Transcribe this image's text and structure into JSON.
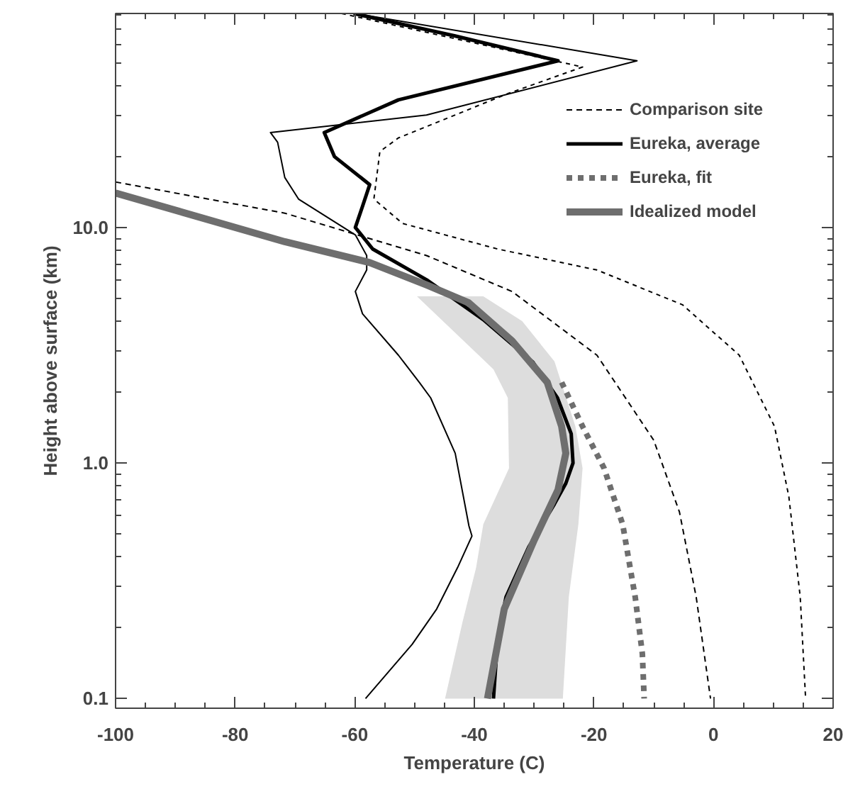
{
  "chart_data": {
    "type": "line",
    "xlabel": "Temperature (C)",
    "ylabel": "Height above surface (km)",
    "log": "y",
    "xlim": [
      -100,
      20
    ],
    "xticks": [
      -100,
      -80,
      -60,
      -40,
      -20,
      0,
      20
    ],
    "ylim": [
      0.091,
      81
    ],
    "yticks": [
      {
        "value": 0.1,
        "label": "0.1"
      },
      {
        "value": 1,
        "label": "1.0"
      },
      {
        "value": 10,
        "label": "10.0"
      }
    ],
    "grid": false,
    "legend": "top right",
    "series": [
      {
        "type": "area",
        "color": "#dddddd",
        "x": [
          -49.6,
          -38.5,
          -32,
          -26.6,
          -23.1,
          -21.9,
          -22.6,
          -24.2,
          -25.2,
          -44.9,
          -42.0,
          -39.7,
          -38.5,
          -34.2,
          -34.4,
          -36.8,
          -49.6
        ],
        "values": [
          5.1,
          5.1,
          4.0,
          2.7,
          1.43,
          0.95,
          0.55,
          0.27,
          0.1,
          0.1,
          0.21,
          0.36,
          0.55,
          0.95,
          1.89,
          2.5,
          5.1
        ]
      },
      {
        "color": "#000000",
        "line_style": "solid",
        "x": [
          -59.9,
          -12.8,
          -48,
          -74.1,
          -72.9,
          -71.7,
          -69.4,
          -59.9,
          -58,
          -58,
          -59.9,
          -58.7,
          -52.7,
          -49.2,
          -47.3,
          -43.2,
          -40.9,
          -40.4,
          -42.8,
          -46.3,
          -50.4,
          -58.2
        ],
        "values": [
          81,
          51,
          30,
          25.3,
          23,
          16.3,
          13.2,
          9.3,
          7.6,
          6.6,
          5.35,
          4.3,
          2.87,
          2.2,
          1.89,
          1.1,
          0.54,
          0.49,
          0.36,
          0.24,
          0.17,
          0.1
        ]
      },
      {
        "color": "#000000",
        "line_style": "dotted",
        "x": [
          -62.2,
          -21.9,
          -34.4,
          -52.7,
          -55.8,
          -56.8,
          -52,
          -36.1,
          -19.5,
          -5.2,
          4.3,
          10.2,
          12.6,
          14.5,
          15.4
        ],
        "values": [
          81,
          48,
          37,
          24,
          21,
          13.2,
          10.4,
          8.1,
          6.6,
          4.7,
          2.87,
          1.43,
          0.72,
          0.27,
          0.1
        ]
      },
      {
        "name": "Comparison site",
        "color": "#000000",
        "line_style": "dashed",
        "x": [
          -100,
          -71.7,
          -48,
          -33.7,
          -19.5,
          -10,
          -5.7,
          -2.9,
          -0.5
        ],
        "values": [
          15.6,
          11.5,
          7.6,
          5.35,
          2.87,
          1.25,
          0.62,
          0.27,
          0.1
        ]
      },
      {
        "name": "Eureka, average",
        "color": "#000000",
        "line_style": "solid",
        "x": [
          -60.2,
          -43.2,
          -26,
          -52.7,
          -65.1,
          -63.4,
          -57.5,
          -58.7,
          -59.9,
          -57,
          -48,
          -38.5,
          -30.2,
          -26.1,
          -23.8,
          -23.5,
          -24.7,
          -26.6,
          -30.9,
          -34.7,
          -36.1,
          -36.8
        ],
        "values": [
          81,
          65,
          51,
          34.8,
          25.3,
          20,
          15.2,
          12.3,
          10,
          8.1,
          6.0,
          4.06,
          2.68,
          1.89,
          1.33,
          1.0,
          0.82,
          0.67,
          0.44,
          0.27,
          0.18,
          0.1
        ]
      },
      {
        "name": "Eureka, fit",
        "color": "#6e6e6e",
        "line_style": "dotted",
        "x": [
          -25.4,
          -21.9,
          -18.3,
          -15.2,
          -13.1,
          -11.9,
          -11.6
        ],
        "values": [
          2.2,
          1.43,
          0.95,
          0.55,
          0.27,
          0.155,
          0.1
        ]
      },
      {
        "name": "Idealized model",
        "color": "#6e6e6e",
        "line_style": "solid",
        "x": [
          -100,
          -71.7,
          -57.5,
          -48,
          -41,
          -33.7,
          -27.8,
          -25.4,
          -24.7,
          -26,
          -30,
          -35,
          -37.8
        ],
        "values": [
          14,
          8.7,
          7.1,
          5.7,
          4.8,
          3.3,
          2.2,
          1.43,
          1.1,
          0.77,
          0.47,
          0.24,
          0.1
        ]
      }
    ]
  }
}
